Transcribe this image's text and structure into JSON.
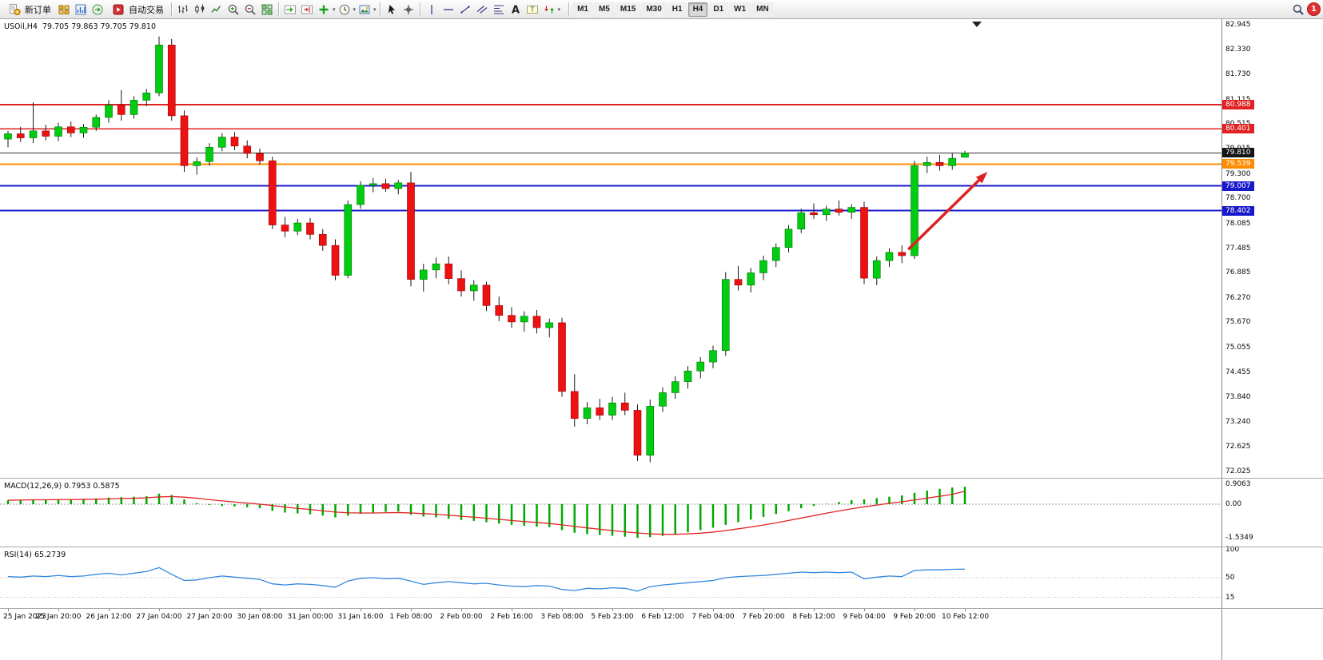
{
  "toolbar": {
    "new_order": {
      "label": "新订单",
      "icon": "new-order-icon"
    },
    "auto_trading": {
      "label": "自动交易",
      "icon": "autotrade-icon"
    },
    "left_icons": [
      {
        "name": "profile-button",
        "icon": "grid-gold"
      },
      {
        "name": "market-watch-button",
        "icon": "chart-blue"
      },
      {
        "name": "navigator-button",
        "icon": "nav-circle"
      }
    ],
    "chart_tools": [
      {
        "name": "bar-chart-button",
        "icon": "bars"
      },
      {
        "name": "candlestick-chart-button",
        "icon": "candles"
      },
      {
        "name": "line-chart-button",
        "icon": "linechart"
      },
      {
        "name": "zoom-in-button",
        "icon": "zoom-in"
      },
      {
        "name": "zoom-out-button",
        "icon": "zoom-out"
      },
      {
        "name": "tile-windows-button",
        "icon": "tile"
      }
    ],
    "scroll_tools": [
      {
        "name": "auto-scroll-button",
        "icon": "autoscroll"
      },
      {
        "name": "chart-shift-button",
        "icon": "chartshift"
      },
      {
        "name": "indicators-button",
        "icon": "plus-green",
        "dropdown": true
      },
      {
        "name": "periods-button",
        "icon": "clock",
        "dropdown": true
      },
      {
        "name": "templates-button",
        "icon": "template",
        "dropdown": true
      }
    ],
    "cursor_tools": [
      {
        "name": "cursor-button",
        "icon": "cursor"
      },
      {
        "name": "crosshair-button",
        "icon": "crosshair"
      }
    ],
    "draw_tools": [
      {
        "name": "vertical-line-button",
        "icon": "vline"
      },
      {
        "name": "horizontal-line-button",
        "icon": "hline"
      },
      {
        "name": "trendline-button",
        "icon": "tline"
      },
      {
        "name": "equidistant-channel-button",
        "icon": "channel"
      },
      {
        "name": "fibonacci-button",
        "icon": "fibo"
      },
      {
        "name": "text-button",
        "icon": "text-a"
      },
      {
        "name": "text-label-button",
        "icon": "label-t"
      },
      {
        "name": "arrows-button",
        "icon": "arrows",
        "dropdown": true
      }
    ],
    "timeframes": {
      "options": [
        "M1",
        "M5",
        "M15",
        "M30",
        "H1",
        "H4",
        "D1",
        "W1",
        "MN"
      ],
      "active": "H4"
    },
    "search_icon": "search",
    "notification_count": "1"
  },
  "chart": {
    "header": "USOil,H4  79.705 79.863 79.705 79.810",
    "price_axis_labels": [
      "82.945",
      "82.330",
      "81.730",
      "81.115",
      "80.515",
      "79.915",
      "79.300",
      "78.700",
      "78.085",
      "77.485",
      "76.885",
      "76.270",
      "75.670",
      "75.055",
      "74.455",
      "73.840",
      "73.240",
      "72.625",
      "72.025"
    ],
    "price_tags": [
      {
        "label": "80.988",
        "color": "#e02222"
      },
      {
        "label": "80.401",
        "color": "#e02222"
      },
      {
        "label": "79.810",
        "color": "#151515"
      },
      {
        "label": "79.539",
        "color": "#ff8c00"
      },
      {
        "label": "79.007",
        "color": "#1919cc"
      },
      {
        "label": "78.402",
        "color": "#1919cc"
      }
    ],
    "time_axis_labels": [
      "25 Jan 2023",
      "25 Jan 20:00",
      "26 Jan 12:00",
      "27 Jan 04:00",
      "27 Jan 20:00",
      "30 Jan 08:00",
      "31 Jan 00:00",
      "31 Jan 16:00",
      "1 Feb 08:00",
      "2 Feb 00:00",
      "2 Feb 16:00",
      "3 Feb 08:00",
      "5 Feb 23:00",
      "6 Feb 12:00",
      "7 Feb 04:00",
      "7 Feb 20:00",
      "8 Feb 12:00",
      "9 Feb 04:00",
      "9 Feb 20:00",
      "10 Feb 12:00"
    ]
  },
  "macd": {
    "label": "MACD(12,26,9) 0.7953 0.5875",
    "scale_labels": [
      "0.9063",
      "0.00",
      "-1.5349"
    ],
    "histogram_color": "#00a800",
    "signal_color": "#e02222",
    "histogram": [
      0.18,
      0.2,
      0.22,
      0.21,
      0.22,
      0.23,
      0.24,
      0.26,
      0.3,
      0.32,
      0.34,
      0.36,
      0.48,
      0.42,
      0.22,
      0.05,
      -0.04,
      -0.08,
      -0.1,
      -0.14,
      -0.18,
      -0.3,
      -0.38,
      -0.42,
      -0.46,
      -0.52,
      -0.6,
      -0.52,
      -0.44,
      -0.38,
      -0.35,
      -0.33,
      -0.48,
      -0.56,
      -0.6,
      -0.66,
      -0.72,
      -0.76,
      -0.82,
      -0.88,
      -0.94,
      -0.98,
      -1.02,
      -1.05,
      -1.18,
      -1.3,
      -1.36,
      -1.4,
      -1.44,
      -1.48,
      -1.53,
      -1.5,
      -1.44,
      -1.37,
      -1.28,
      -1.18,
      -1.07,
      -0.94,
      -0.82,
      -0.7,
      -0.58,
      -0.45,
      -0.32,
      -0.18,
      -0.08,
      0.02,
      0.1,
      0.18,
      0.22,
      0.28,
      0.34,
      0.4,
      0.52,
      0.62,
      0.7,
      0.76,
      0.7953
    ],
    "signal": [
      0.18,
      0.19,
      0.2,
      0.2,
      0.21,
      0.21,
      0.22,
      0.23,
      0.24,
      0.26,
      0.27,
      0.29,
      0.33,
      0.35,
      0.32,
      0.27,
      0.21,
      0.15,
      0.1,
      0.05,
      0,
      -0.06,
      -0.13,
      -0.19,
      -0.24,
      -0.3,
      -0.36,
      -0.39,
      -0.4,
      -0.4,
      -0.39,
      -0.38,
      -0.4,
      -0.43,
      -0.46,
      -0.5,
      -0.55,
      -0.59,
      -0.64,
      -0.69,
      -0.74,
      -0.79,
      -0.83,
      -0.88,
      -0.94,
      -1.01,
      -1.08,
      -1.14,
      -1.2,
      -1.26,
      -1.31,
      -1.35,
      -1.37,
      -1.37,
      -1.35,
      -1.32,
      -1.27,
      -1.2,
      -1.12,
      -1.04,
      -0.95,
      -0.85,
      -0.74,
      -0.63,
      -0.52,
      -0.41,
      -0.31,
      -0.21,
      -0.12,
      -0.04,
      0.04,
      0.11,
      0.19,
      0.28,
      0.36,
      0.45,
      0.5875
    ]
  },
  "rsi": {
    "label": "RSI(14) 65.2739",
    "scale_labels": [
      "100",
      "50",
      "15"
    ],
    "line_color": "#3388dd",
    "levels": [
      50,
      15
    ],
    "values": [
      52,
      51,
      53,
      52,
      54,
      52,
      53,
      56,
      58,
      55,
      58,
      61,
      68,
      56,
      45,
      46,
      50,
      53,
      51,
      49,
      47,
      39,
      37,
      39,
      38,
      36,
      33,
      44,
      49,
      50,
      48,
      49,
      44,
      38,
      41,
      43,
      41,
      39,
      40,
      37,
      35,
      34,
      36,
      35,
      29,
      27,
      31,
      30,
      32,
      31,
      26,
      34,
      37,
      39,
      41,
      43,
      45,
      50,
      52,
      53,
      54,
      56,
      58,
      60,
      59,
      60,
      59,
      60,
      48,
      51,
      53,
      52,
      63,
      64,
      64,
      65,
      65.2739
    ]
  },
  "chart_data": {
    "type": "candlestick",
    "title": "USOil H4",
    "symbol": "USOil",
    "timeframe": "H4",
    "ohlc_display": {
      "open": "79.705",
      "high": "79.863",
      "low": "79.705",
      "close": "79.810"
    },
    "y_range": [
      72.025,
      82.945
    ],
    "bull_color": "#00cc11",
    "bear_color": "#ee1111",
    "candles": [
      [
        80.15,
        80.35,
        79.95,
        80.28
      ],
      [
        80.28,
        80.45,
        80.08,
        80.18
      ],
      [
        80.18,
        81.05,
        80.05,
        80.35
      ],
      [
        80.35,
        80.5,
        80.12,
        80.22
      ],
      [
        80.22,
        80.55,
        80.1,
        80.45
      ],
      [
        80.45,
        80.58,
        80.2,
        80.3
      ],
      [
        80.3,
        80.52,
        80.18,
        80.44
      ],
      [
        80.44,
        80.75,
        80.35,
        80.68
      ],
      [
        80.68,
        81.1,
        80.55,
        80.98
      ],
      [
        80.98,
        81.35,
        80.6,
        80.75
      ],
      [
        80.75,
        81.2,
        80.65,
        81.1
      ],
      [
        81.1,
        81.38,
        80.95,
        81.28
      ],
      [
        81.28,
        82.66,
        81.2,
        82.45
      ],
      [
        82.45,
        82.6,
        80.6,
        80.72
      ],
      [
        80.72,
        80.85,
        79.35,
        79.5
      ],
      [
        79.5,
        79.7,
        79.28,
        79.6
      ],
      [
        79.6,
        80.05,
        79.5,
        79.95
      ],
      [
        79.95,
        80.3,
        79.85,
        80.2
      ],
      [
        80.2,
        80.32,
        79.88,
        79.98
      ],
      [
        79.98,
        80.12,
        79.68,
        79.8
      ],
      [
        79.8,
        79.92,
        79.52,
        79.62
      ],
      [
        79.62,
        79.72,
        77.95,
        78.05
      ],
      [
        78.05,
        78.25,
        77.75,
        77.9
      ],
      [
        77.9,
        78.2,
        77.8,
        78.1
      ],
      [
        78.1,
        78.22,
        77.7,
        77.82
      ],
      [
        77.82,
        77.95,
        77.42,
        77.55
      ],
      [
        77.55,
        77.7,
        76.7,
        76.82
      ],
      [
        76.82,
        78.65,
        76.75,
        78.55
      ],
      [
        78.55,
        79.12,
        78.45,
        79.02
      ],
      [
        79.02,
        79.2,
        78.85,
        79.06
      ],
      [
        79.06,
        79.18,
        78.86,
        78.94
      ],
      [
        78.94,
        79.15,
        78.8,
        79.08
      ],
      [
        79.08,
        79.35,
        76.55,
        76.72
      ],
      [
        76.72,
        77.1,
        76.42,
        76.95
      ],
      [
        76.95,
        77.25,
        76.75,
        77.1
      ],
      [
        77.1,
        77.28,
        76.6,
        76.74
      ],
      [
        76.74,
        76.94,
        76.3,
        76.44
      ],
      [
        76.44,
        76.7,
        76.2,
        76.58
      ],
      [
        76.58,
        76.66,
        75.95,
        76.08
      ],
      [
        76.08,
        76.3,
        75.7,
        75.84
      ],
      [
        75.84,
        76.04,
        75.54,
        75.68
      ],
      [
        75.68,
        75.94,
        75.44,
        75.82
      ],
      [
        75.82,
        75.97,
        75.4,
        75.54
      ],
      [
        75.54,
        75.76,
        75.3,
        75.66
      ],
      [
        75.66,
        75.78,
        73.85,
        73.98
      ],
      [
        73.98,
        74.4,
        73.12,
        73.32
      ],
      [
        73.32,
        73.72,
        73.18,
        73.58
      ],
      [
        73.58,
        73.8,
        73.28,
        73.4
      ],
      [
        73.4,
        73.85,
        73.28,
        73.7
      ],
      [
        73.7,
        73.95,
        73.4,
        73.52
      ],
      [
        73.52,
        73.66,
        72.28,
        72.42
      ],
      [
        72.42,
        73.78,
        72.25,
        73.62
      ],
      [
        73.62,
        74.08,
        73.48,
        73.95
      ],
      [
        73.95,
        74.35,
        73.8,
        74.22
      ],
      [
        74.22,
        74.6,
        74.05,
        74.48
      ],
      [
        74.48,
        74.82,
        74.3,
        74.7
      ],
      [
        74.7,
        75.1,
        74.55,
        74.98
      ],
      [
        74.98,
        76.9,
        74.85,
        76.72
      ],
      [
        76.72,
        77.05,
        76.45,
        76.58
      ],
      [
        76.58,
        77.0,
        76.4,
        76.88
      ],
      [
        76.88,
        77.3,
        76.7,
        77.18
      ],
      [
        77.18,
        77.6,
        77.02,
        77.5
      ],
      [
        77.5,
        78.05,
        77.38,
        77.95
      ],
      [
        77.95,
        78.45,
        77.85,
        78.35
      ],
      [
        78.35,
        78.58,
        78.2,
        78.3
      ],
      [
        78.3,
        78.52,
        78.15,
        78.44
      ],
      [
        78.44,
        78.65,
        78.28,
        78.36
      ],
      [
        78.36,
        78.56,
        78.2,
        78.48
      ],
      [
        78.48,
        78.62,
        76.6,
        76.75
      ],
      [
        76.75,
        77.28,
        76.58,
        77.18
      ],
      [
        77.18,
        77.48,
        77.02,
        77.38
      ],
      [
        77.38,
        77.55,
        77.12,
        77.3
      ],
      [
        77.3,
        79.62,
        77.22,
        79.5
      ],
      [
        79.5,
        79.72,
        79.32,
        79.58
      ],
      [
        79.58,
        79.76,
        79.38,
        79.5
      ],
      [
        79.5,
        79.8,
        79.4,
        79.68
      ],
      [
        79.705,
        79.863,
        79.705,
        79.81
      ]
    ],
    "horizontal_lines": [
      {
        "price": 80.988,
        "color": "#e02222",
        "width": 2
      },
      {
        "price": 80.401,
        "color": "#e02222",
        "width": 1.5
      },
      {
        "price": 79.81,
        "color": "#333333",
        "width": 1
      },
      {
        "price": 79.539,
        "color": "#ff8c00",
        "width": 2
      },
      {
        "price": 79.007,
        "color": "#1919cc",
        "width": 2
      },
      {
        "price": 78.402,
        "color": "#1919cc",
        "width": 2
      }
    ],
    "annotations": [
      {
        "type": "arrow",
        "from": [
          71.5,
          77.45
        ],
        "to": [
          77.8,
          79.35
        ],
        "color": "#dd2222"
      }
    ]
  }
}
